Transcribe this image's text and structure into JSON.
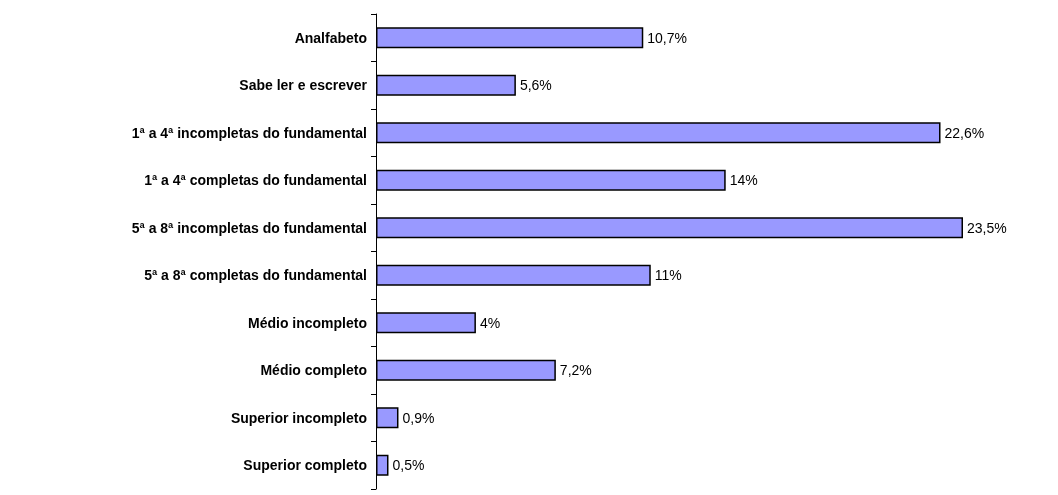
{
  "chart_data": {
    "type": "bar",
    "orientation": "horizontal",
    "categories": [
      "Analfabeto",
      "Sabe ler e escrever",
      "1ª a 4ª incompletas do fundamental",
      "1ª a 4ª completas do fundamental",
      "5ª a 8ª incompletas do fundamental",
      "5ª a 8ª completas do fundamental",
      "Médio incompleto",
      "Médio completo",
      "Superior incompleto",
      "Superior completo"
    ],
    "values": [
      10.7,
      5.6,
      22.6,
      14,
      23.5,
      11,
      4,
      7.2,
      0.9,
      0.5
    ],
    "value_labels": [
      "10,7%",
      "5,6%",
      "22,6%",
      "14%",
      "23,5%",
      "11%",
      "4%",
      "7,2%",
      "0,9%",
      "0,5%"
    ],
    "color": "#9999ff"
  }
}
